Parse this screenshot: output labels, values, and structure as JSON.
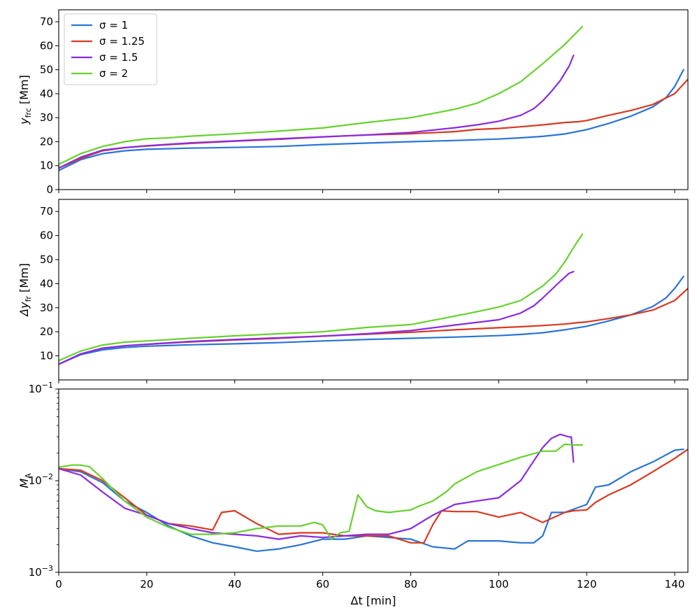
{
  "chart_data": [
    {
      "type": "line",
      "ylabel": "y_frc [Mm]",
      "ylabel_main": "y",
      "ylabel_sub": "frc",
      "ylabel_unit": " [Mm]",
      "xlim": [
        0,
        143
      ],
      "ylim": [
        0,
        75
      ],
      "yticks": [
        0,
        10,
        20,
        30,
        40,
        50,
        60,
        70
      ],
      "legend": "top-left",
      "series": [
        {
          "name": "σ = 1",
          "color": "#2a74d5",
          "x": [
            0,
            5,
            10,
            15,
            20,
            30,
            40,
            50,
            60,
            70,
            80,
            90,
            100,
            105,
            110,
            115,
            120,
            125,
            130,
            135,
            138,
            140,
            142
          ],
          "y": [
            8,
            12.5,
            15,
            16.2,
            16.8,
            17.3,
            17.6,
            18,
            18.8,
            19.4,
            20,
            20.5,
            21.1,
            21.6,
            22.2,
            23.2,
            25,
            27.6,
            30.6,
            34.5,
            38.3,
            43,
            50
          ]
        },
        {
          "name": "σ = 1.25",
          "color": "#d63a22",
          "x": [
            0,
            5,
            10,
            15,
            20,
            30,
            40,
            50,
            60,
            70,
            80,
            90,
            95,
            100,
            105,
            110,
            115,
            118,
            120,
            125,
            130,
            135,
            140,
            143
          ],
          "y": [
            9,
            13,
            16.2,
            17.5,
            18.2,
            19.3,
            20.2,
            21,
            22,
            22.8,
            23.3,
            24.2,
            25.1,
            25.5,
            26.2,
            27,
            28,
            28.3,
            28.8,
            31,
            33,
            35.5,
            40,
            46
          ]
        },
        {
          "name": "σ = 1.5",
          "color": "#8a2be2",
          "x": [
            0,
            5,
            10,
            15,
            20,
            30,
            40,
            50,
            60,
            70,
            80,
            90,
            95,
            100,
            105,
            108,
            110,
            112,
            114,
            116,
            117
          ],
          "y": [
            9,
            13.5,
            16.5,
            17.5,
            18.3,
            19.5,
            20.3,
            21.2,
            22,
            22.8,
            23.8,
            25.8,
            27,
            28.5,
            31,
            33.8,
            37,
            41,
            45.5,
            51.5,
            56
          ]
        },
        {
          "name": "σ = 2",
          "color": "#66d12e",
          "x": [
            0,
            5,
            10,
            15,
            20,
            25,
            30,
            40,
            50,
            60,
            70,
            80,
            90,
            95,
            100,
            105,
            110,
            115,
            119
          ],
          "y": [
            10.5,
            15,
            18,
            20,
            21.2,
            21.6,
            22.3,
            23.3,
            24.4,
            25.7,
            28,
            30,
            33.5,
            36,
            40,
            45,
            52.5,
            60.5,
            68
          ]
        }
      ]
    },
    {
      "type": "line",
      "ylabel": "Δy_fr [Mm]",
      "ylabel_main": "Δy",
      "ylabel_sub": "fr",
      "ylabel_unit": " [Mm]",
      "xlim": [
        0,
        143
      ],
      "ylim": [
        0,
        75
      ],
      "yticks": [
        10,
        20,
        30,
        40,
        50,
        60,
        70
      ],
      "series": [
        {
          "name": "σ = 1",
          "color": "#2a74d5",
          "x": [
            0,
            5,
            10,
            15,
            20,
            30,
            40,
            50,
            60,
            70,
            80,
            90,
            100,
            105,
            110,
            115,
            120,
            125,
            130,
            135,
            138,
            140,
            142
          ],
          "y": [
            6.5,
            10.5,
            12.5,
            13.5,
            14,
            14.6,
            15,
            15.5,
            16.2,
            16.8,
            17.3,
            17.8,
            18.4,
            18.9,
            19.6,
            20.8,
            22.3,
            24.5,
            27,
            30.5,
            34,
            38,
            43
          ]
        },
        {
          "name": "σ = 1.25",
          "color": "#d63a22",
          "x": [
            0,
            5,
            10,
            15,
            20,
            30,
            40,
            50,
            60,
            70,
            80,
            90,
            100,
            105,
            110,
            115,
            118,
            120,
            125,
            130,
            135,
            140,
            143
          ],
          "y": [
            6.5,
            10.8,
            13.2,
            14.2,
            14.8,
            15.8,
            16.6,
            17.3,
            18.2,
            19,
            19.8,
            20.8,
            21.7,
            22.1,
            22.6,
            23.2,
            23.8,
            24.1,
            25.5,
            27,
            29,
            33,
            38
          ]
        },
        {
          "name": "σ = 1.5",
          "color": "#8a2be2",
          "x": [
            0,
            5,
            10,
            15,
            20,
            30,
            40,
            50,
            60,
            70,
            80,
            90,
            100,
            105,
            108,
            110,
            112,
            114,
            116,
            117
          ],
          "y": [
            6.5,
            10.8,
            13.2,
            14.2,
            14.8,
            16,
            16.8,
            17.5,
            18.2,
            19.2,
            20.5,
            22.8,
            25,
            27.8,
            30.8,
            34,
            37.5,
            41,
            44.3,
            45
          ]
        },
        {
          "name": "σ = 2",
          "color": "#66d12e",
          "x": [
            0,
            5,
            10,
            15,
            20,
            30,
            40,
            50,
            60,
            70,
            80,
            90,
            95,
            100,
            105,
            110,
            113,
            115,
            117,
            119
          ],
          "y": [
            8,
            12,
            14.5,
            15.7,
            16.2,
            17.3,
            18.3,
            19.2,
            20,
            21.8,
            23,
            26.5,
            28.3,
            30.3,
            33,
            39,
            44,
            49,
            55,
            60.5
          ]
        }
      ]
    },
    {
      "type": "line",
      "ylabel": "M_A",
      "ylabel_main": "M",
      "ylabel_sub": "A",
      "xlabel": "Δt [min]",
      "xlim": [
        0,
        143
      ],
      "ylim": [
        0.001,
        0.1
      ],
      "yscale": "log",
      "yticks": [
        0.001,
        0.01,
        0.1
      ],
      "ytick_labels": [
        {
          "base": "10",
          "exp": "−3"
        },
        {
          "base": "10",
          "exp": "−2"
        },
        {
          "base": "10",
          "exp": "−1"
        }
      ],
      "xticks": [
        0,
        20,
        40,
        60,
        80,
        100,
        120,
        140
      ],
      "series": [
        {
          "name": "σ = 1",
          "color": "#2a74d5",
          "x": [
            0,
            5,
            10,
            15,
            20,
            25,
            30,
            35,
            40,
            45,
            50,
            55,
            60,
            65,
            70,
            75,
            80,
            85,
            90,
            93,
            95,
            100,
            105,
            108,
            110,
            112,
            115,
            120,
            122,
            125,
            130,
            135,
            140,
            142
          ],
          "y": [
            0.0135,
            0.0125,
            0.0095,
            0.006,
            0.0045,
            0.0032,
            0.0025,
            0.0021,
            0.0019,
            0.0017,
            0.0018,
            0.002,
            0.0023,
            0.0023,
            0.0025,
            0.0024,
            0.0023,
            0.0019,
            0.0018,
            0.0022,
            0.0022,
            0.0022,
            0.0021,
            0.0021,
            0.0025,
            0.0045,
            0.0045,
            0.0055,
            0.0085,
            0.009,
            0.0125,
            0.016,
            0.0215,
            0.022
          ]
        },
        {
          "name": "σ = 1.25",
          "color": "#d63a22",
          "x": [
            0,
            5,
            10,
            15,
            20,
            25,
            30,
            35,
            37,
            40,
            45,
            50,
            55,
            60,
            65,
            70,
            75,
            80,
            83,
            85,
            87,
            90,
            95,
            100,
            105,
            110,
            115,
            117,
            120,
            122,
            125,
            130,
            135,
            140,
            143
          ],
          "y": [
            0.0135,
            0.013,
            0.01,
            0.0065,
            0.0042,
            0.0034,
            0.0032,
            0.0029,
            0.0045,
            0.0047,
            0.0034,
            0.0026,
            0.0027,
            0.0027,
            0.0025,
            0.0025,
            0.0025,
            0.0021,
            0.0021,
            0.0033,
            0.0047,
            0.0046,
            0.0046,
            0.004,
            0.0045,
            0.0035,
            0.0045,
            0.0047,
            0.0048,
            0.0058,
            0.007,
            0.009,
            0.0125,
            0.0175,
            0.022
          ]
        },
        {
          "name": "σ = 1.5",
          "color": "#8a2be2",
          "x": [
            0,
            5,
            10,
            15,
            20,
            25,
            30,
            35,
            40,
            45,
            50,
            55,
            60,
            65,
            70,
            75,
            80,
            85,
            90,
            95,
            100,
            105,
            108,
            110,
            112,
            114,
            116,
            116.5,
            117
          ],
          "y": [
            0.0135,
            0.0115,
            0.0075,
            0.005,
            0.0042,
            0.0034,
            0.003,
            0.0027,
            0.0026,
            0.0025,
            0.0023,
            0.0025,
            0.0024,
            0.0025,
            0.0026,
            0.0026,
            0.003,
            0.0042,
            0.0055,
            0.006,
            0.0065,
            0.01,
            0.0165,
            0.023,
            0.029,
            0.032,
            0.03,
            0.03,
            0.016
          ]
        },
        {
          "name": "σ = 2",
          "color": "#66d12e",
          "x": [
            0,
            3,
            5,
            7,
            10,
            15,
            20,
            25,
            30,
            35,
            40,
            45,
            50,
            55,
            58,
            60,
            62,
            64,
            66,
            68,
            70,
            72,
            75,
            80,
            82,
            85,
            88,
            90,
            95,
            100,
            105,
            110,
            113,
            115,
            117,
            119
          ],
          "y": [
            0.014,
            0.0148,
            0.0148,
            0.0142,
            0.0105,
            0.006,
            0.004,
            0.0031,
            0.0026,
            0.0026,
            0.0027,
            0.003,
            0.0032,
            0.0032,
            0.0035,
            0.0033,
            0.0023,
            0.0027,
            0.0028,
            0.007,
            0.0052,
            0.0047,
            0.0045,
            0.0048,
            0.0053,
            0.006,
            0.0075,
            0.0092,
            0.0125,
            0.015,
            0.018,
            0.021,
            0.021,
            0.025,
            0.0245,
            0.0245
          ]
        }
      ]
    }
  ]
}
